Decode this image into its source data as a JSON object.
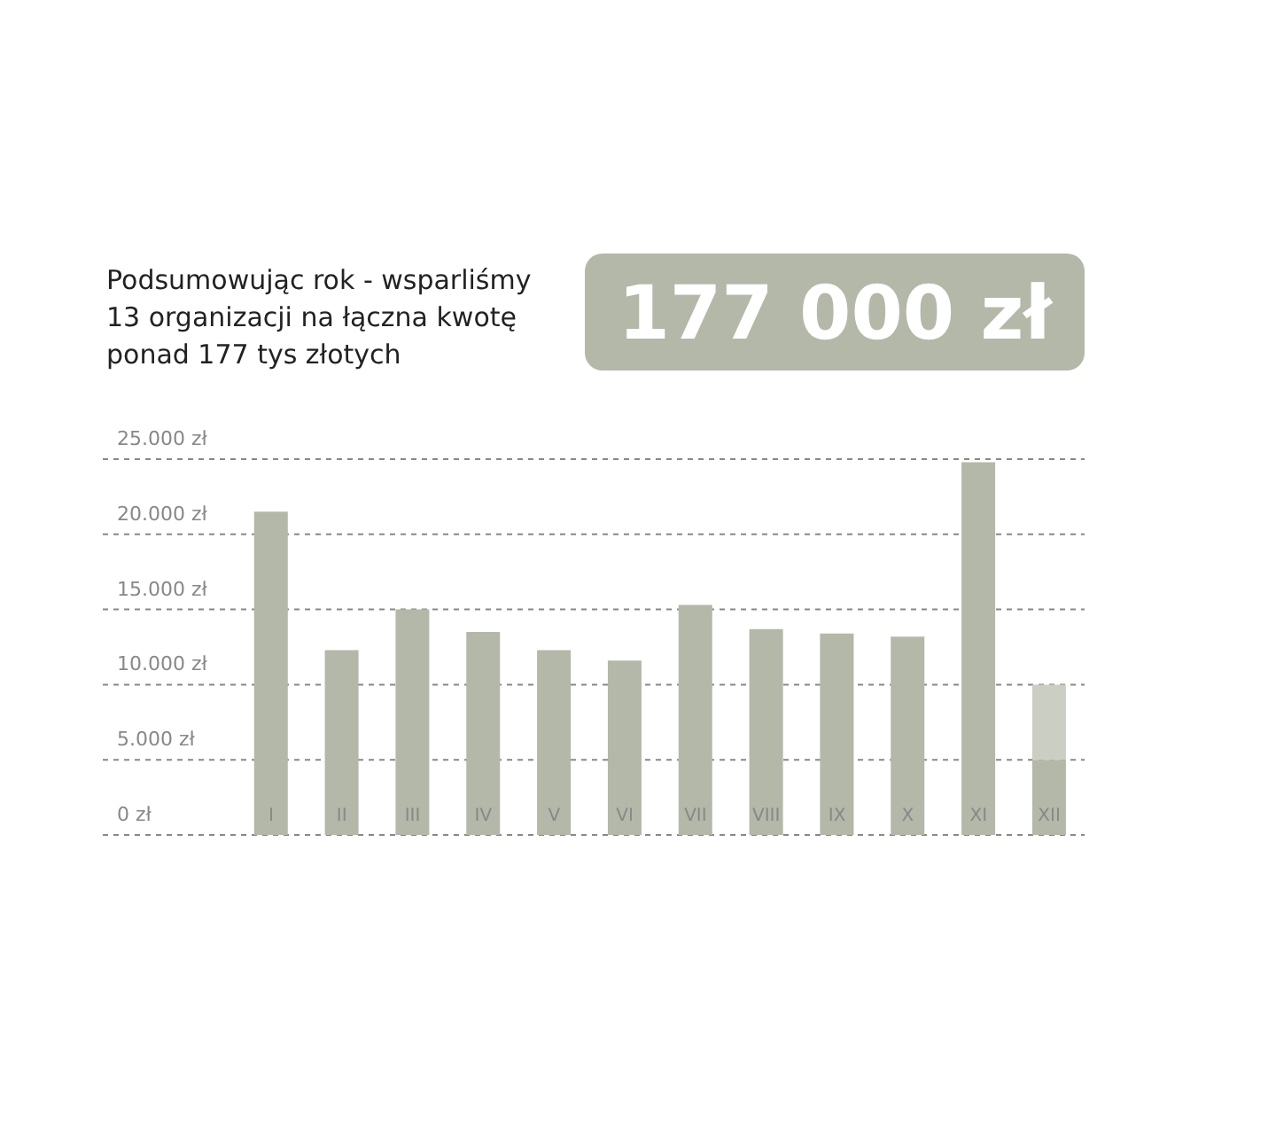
{
  "chart_data": {
    "type": "bar",
    "title": "Podsumowując rok - wsparliśmy 13 organizacji na łączna kwotę ponad 177 tys złotych",
    "annotations": [
      "177 000 zł"
    ],
    "categories": [
      "I",
      "II",
      "III",
      "IV",
      "V",
      "VI",
      "VII",
      "VIII",
      "IX",
      "X",
      "XI",
      "XII"
    ],
    "stacked": true,
    "series": [
      {
        "color": "#b3b8a8",
        "values": [
          21500,
          12300,
          15000,
          13500,
          12300,
          11600,
          15300,
          13700,
          13400,
          13200,
          24800,
          5000
        ]
      },
      {
        "color": "#cbcec3",
        "values": [
          null,
          null,
          null,
          null,
          null,
          null,
          null,
          null,
          null,
          null,
          null,
          5000
        ]
      }
    ],
    "ylim": [
      0,
      25000
    ],
    "yticks": [
      {
        "value": 0,
        "label": "0 zł"
      },
      {
        "value": 5000,
        "label": "5.000 zł"
      },
      {
        "value": 10000,
        "label": "10.000 zł"
      },
      {
        "value": 15000,
        "label": "15.000 zł"
      },
      {
        "value": 20000,
        "label": "20.000 zł"
      },
      {
        "value": 25000,
        "label": "25.000 zł"
      }
    ],
    "grid": "y"
  }
}
